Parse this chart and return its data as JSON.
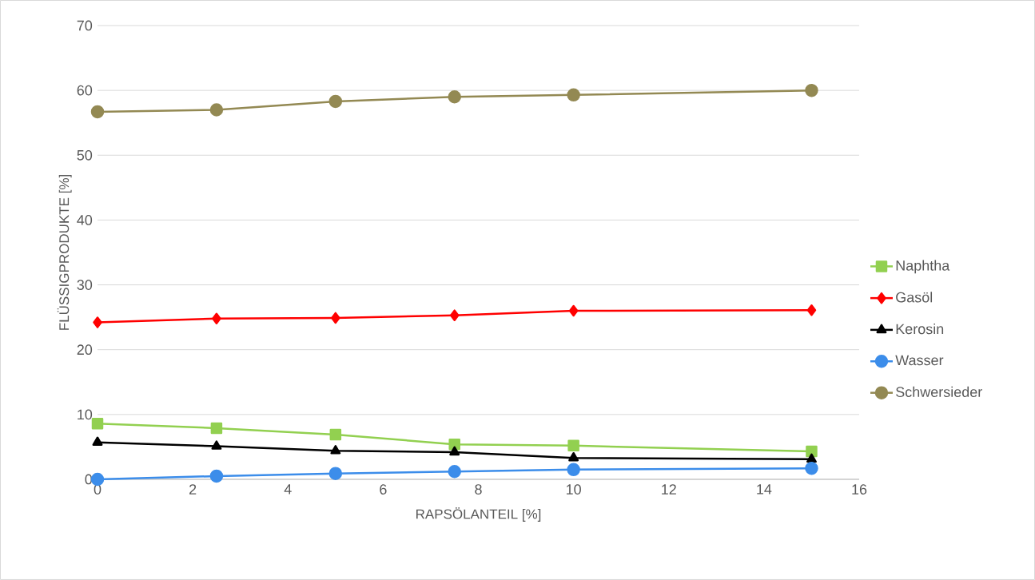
{
  "chart_data": {
    "type": "line",
    "xlabel": "RAPSÖLANTEIL [%]",
    "ylabel": "FLÜSSIGPRODUKTE [%]",
    "x": [
      0,
      2.5,
      5,
      7.5,
      10,
      15
    ],
    "series": [
      {
        "name": "Naphtha",
        "color": "#92d050",
        "marker": "square",
        "values": [
          8.6,
          7.9,
          6.9,
          5.4,
          5.2,
          4.3
        ]
      },
      {
        "name": "Gasöl",
        "color": "#ff0000",
        "marker": "diamond",
        "values": [
          24.2,
          24.8,
          24.9,
          25.3,
          26.0,
          26.1
        ]
      },
      {
        "name": "Kerosin",
        "color": "#000000",
        "marker": "triangle",
        "values": [
          5.7,
          5.1,
          4.4,
          4.2,
          3.3,
          3.1
        ]
      },
      {
        "name": "Wasser",
        "color": "#3c8dea",
        "marker": "circle",
        "values": [
          0,
          0.5,
          0.9,
          1.2,
          1.5,
          1.7
        ]
      },
      {
        "name": "Schwersieder",
        "color": "#938953",
        "marker": "circle",
        "values": [
          56.7,
          57.0,
          58.3,
          59.0,
          59.3,
          60.0
        ]
      }
    ],
    "xlim": [
      0,
      16
    ],
    "ylim": [
      0,
      70
    ],
    "xticks": [
      0,
      2,
      4,
      6,
      8,
      10,
      12,
      14,
      16
    ],
    "yticks": [
      0,
      10,
      20,
      30,
      40,
      50,
      60,
      70
    ],
    "grid": "y",
    "legend": "right",
    "line_style": "solid"
  }
}
